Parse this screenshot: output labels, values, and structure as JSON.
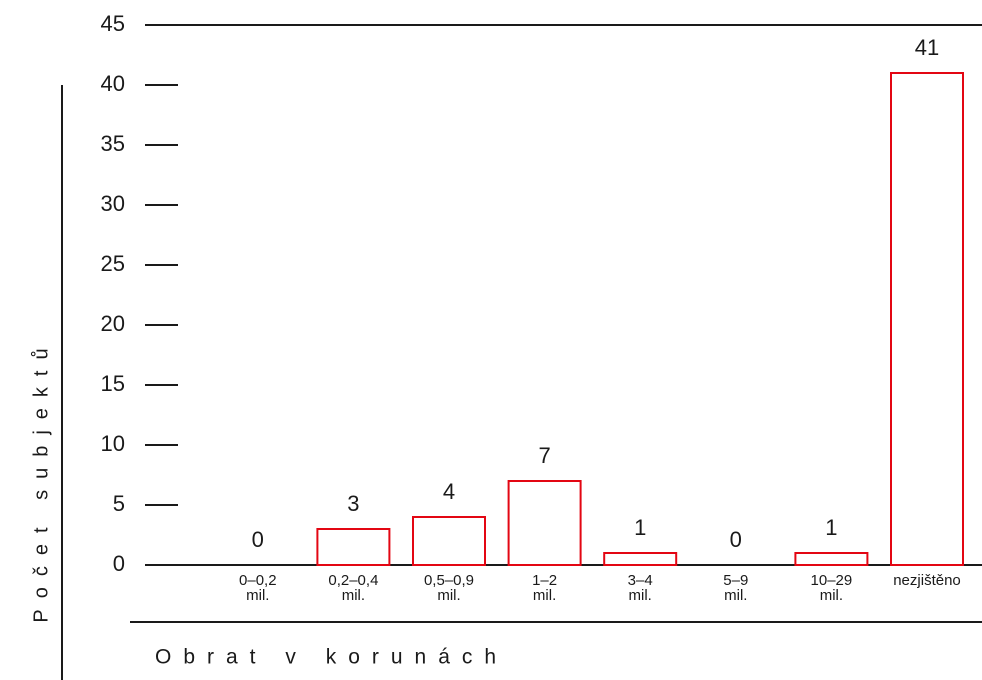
{
  "chart_data": {
    "type": "bar",
    "categories": [
      "0–0,2\nmil.",
      "0,2–0,4\nmil.",
      "0,5–0,9\nmil.",
      "1–2\nmil.",
      "3–4\nmil.",
      "5–9\nmil.",
      "10–29\nmil.",
      "nezjištěno"
    ],
    "values": [
      0,
      3,
      4,
      7,
      1,
      0,
      1,
      41
    ],
    "color": "#e30613",
    "ylim": [
      0,
      45
    ],
    "yticks": [
      0,
      5,
      10,
      15,
      20,
      25,
      30,
      35,
      40,
      45
    ],
    "xlabel": "Obrat v korunách",
    "ylabel": "Počet subjektů"
  }
}
